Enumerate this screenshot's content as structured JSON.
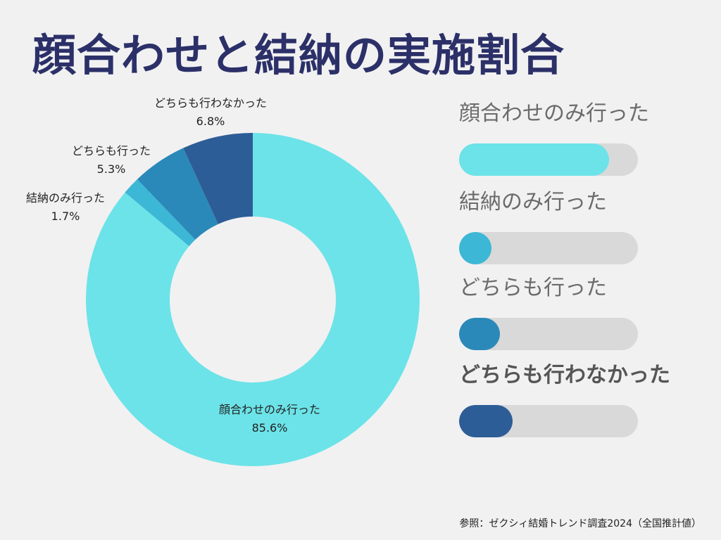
{
  "title": "顔合わせと結納の実施割合",
  "source": "参照：ゼクシィ結婚トレンド調査2024（全国推計値）",
  "chart_data": {
    "type": "pie",
    "donut": true,
    "slices": [
      {
        "label": "顔合わせのみ行った",
        "value": 85.6,
        "value_label": "85.6%",
        "color": "#6ce3e8"
      },
      {
        "label": "結納のみ行った",
        "value": 1.7,
        "value_label": "1.7%",
        "color": "#3cb7d6"
      },
      {
        "label": "どちらも行った",
        "value": 5.3,
        "value_label": "5.3%",
        "color": "#2a89b8"
      },
      {
        "label": "どちらも行わなかった",
        "value": 6.8,
        "value_label": "6.8%",
        "color": "#2d5d96"
      }
    ]
  },
  "legend": {
    "items": [
      {
        "label": "顔合わせのみ行った",
        "fill": 0.84,
        "color": "#6ce3e8",
        "bold": false
      },
      {
        "label": "結納のみ行った",
        "fill": 0.18,
        "color": "#3cb7d6",
        "bold": false
      },
      {
        "label": "どちらも行った",
        "fill": 0.23,
        "color": "#2a89b8",
        "bold": false
      },
      {
        "label": "どちらも行わなかった",
        "fill": 0.3,
        "color": "#2d5d96",
        "bold": true
      }
    ]
  }
}
